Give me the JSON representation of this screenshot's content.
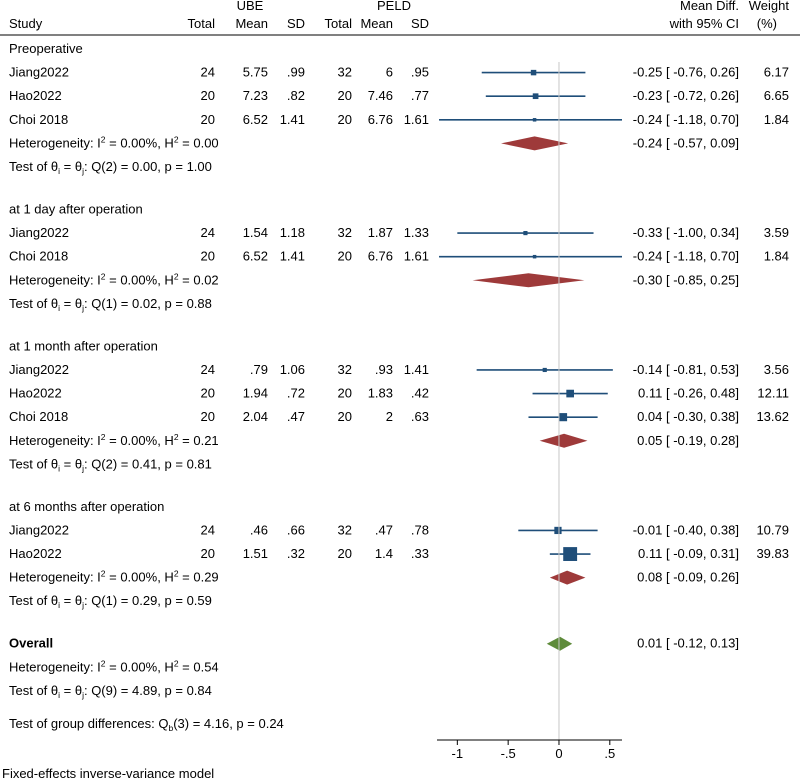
{
  "chart_data": {
    "type": "forest",
    "model_note": "Fixed-effects inverse-variance model",
    "header": {
      "study": "Study",
      "group1": "UBE",
      "group2": "PELD",
      "total": "Total",
      "mean": "Mean",
      "sd": "SD",
      "effect_line1": "Mean Diff.",
      "effect_line2": "with 95% CI",
      "weight_line1": "Weight",
      "weight_line2": "(%)"
    },
    "axis": {
      "xlim": [
        -1.2,
        0.62
      ],
      "ticks": [
        -1,
        -0.5,
        0,
        0.5
      ],
      "tick_labels": [
        "-1",
        "-.5",
        "0",
        ".5"
      ],
      "null_line": 0
    },
    "colors": {
      "study_marker": "#1f4e79",
      "subgroup_diamond": "#9e3a3a",
      "overall_diamond": "#5e8b3a",
      "line": "#000000"
    },
    "groups": [
      {
        "name": "Preoperative",
        "studies": [
          {
            "study": "Jiang2022",
            "n1": "24",
            "m1": "5.75",
            "sd1": ".99",
            "n2": "32",
            "m2": "6",
            "sd2": ".95",
            "est": -0.25,
            "lo": -0.76,
            "hi": 0.26,
            "ci_text": "-0.25 [  -0.76,  0.26]",
            "weight": "6.17"
          },
          {
            "study": "Hao2022",
            "n1": "20",
            "m1": "7.23",
            "sd1": ".82",
            "n2": "20",
            "m2": "7.46",
            "sd2": ".77",
            "est": -0.23,
            "lo": -0.72,
            "hi": 0.26,
            "ci_text": "-0.23 [  -0.72,  0.26]",
            "weight": "6.65"
          },
          {
            "study": "Choi 2018",
            "n1": "20",
            "m1": "6.52",
            "sd1": "1.41",
            "n2": "20",
            "m2": "6.76",
            "sd2": "1.61",
            "est": -0.24,
            "lo": -1.18,
            "hi": 0.7,
            "ci_text": "-0.24 [  -1.18,  0.70]",
            "weight": "1.84"
          }
        ],
        "pooled": {
          "est": -0.24,
          "lo": -0.57,
          "hi": 0.09,
          "ci_text": "-0.24 [  -0.57,  0.09]"
        },
        "heterogeneity": {
          "prefix": "Heterogeneity: I",
          "sup": "2",
          "mid": " = 0.00%, H",
          "sup2": "2",
          "suffix": " = 0.00"
        },
        "test": {
          "prefix": "Test of θ",
          "sub1": "i",
          "mid": " = θ",
          "sub2": "j",
          "suffix": ": Q(2) = 0.00, p = 1.00"
        }
      },
      {
        "name": "at 1 day after operation",
        "studies": [
          {
            "study": "Jiang2022",
            "n1": "24",
            "m1": "1.54",
            "sd1": "1.18",
            "n2": "32",
            "m2": "1.87",
            "sd2": "1.33",
            "est": -0.33,
            "lo": -1.0,
            "hi": 0.34,
            "ci_text": "-0.33 [  -1.00,  0.34]",
            "weight": "3.59"
          },
          {
            "study": "Choi 2018",
            "n1": "20",
            "m1": "6.52",
            "sd1": "1.41",
            "n2": "20",
            "m2": "6.76",
            "sd2": "1.61",
            "est": -0.24,
            "lo": -1.18,
            "hi": 0.7,
            "ci_text": "-0.24 [  -1.18,  0.70]",
            "weight": "1.84"
          }
        ],
        "pooled": {
          "est": -0.3,
          "lo": -0.85,
          "hi": 0.25,
          "ci_text": "-0.30 [  -0.85,  0.25]"
        },
        "heterogeneity": {
          "prefix": "Heterogeneity: I",
          "sup": "2",
          "mid": " = 0.00%, H",
          "sup2": "2",
          "suffix": " = 0.02"
        },
        "test": {
          "prefix": "Test of θ",
          "sub1": "i",
          "mid": " = θ",
          "sub2": "j",
          "suffix": ": Q(1) = 0.02, p = 0.88"
        }
      },
      {
        "name": "at 1 month after operation",
        "studies": [
          {
            "study": "Jiang2022",
            "n1": "24",
            "m1": ".79",
            "sd1": "1.06",
            "n2": "32",
            "m2": ".93",
            "sd2": "1.41",
            "est": -0.14,
            "lo": -0.81,
            "hi": 0.53,
            "ci_text": "-0.14 [  -0.81,  0.53]",
            "weight": "3.56"
          },
          {
            "study": "Hao2022",
            "n1": "20",
            "m1": "1.94",
            "sd1": ".72",
            "n2": "20",
            "m2": "1.83",
            "sd2": ".42",
            "est": 0.11,
            "lo": -0.26,
            "hi": 0.48,
            "ci_text": "0.11 [  -0.26,  0.48]",
            "weight": "12.11"
          },
          {
            "study": "Choi 2018",
            "n1": "20",
            "m1": "2.04",
            "sd1": ".47",
            "n2": "20",
            "m2": "2",
            "sd2": ".63",
            "est": 0.04,
            "lo": -0.3,
            "hi": 0.38,
            "ci_text": "0.04 [  -0.30,  0.38]",
            "weight": "13.62"
          }
        ],
        "pooled": {
          "est": 0.05,
          "lo": -0.19,
          "hi": 0.28,
          "ci_text": "0.05 [  -0.19,  0.28]"
        },
        "heterogeneity": {
          "prefix": "Heterogeneity: I",
          "sup": "2",
          "mid": " = 0.00%, H",
          "sup2": "2",
          "suffix": " = 0.21"
        },
        "test": {
          "prefix": "Test of θ",
          "sub1": "i",
          "mid": " = θ",
          "sub2": "j",
          "suffix": ": Q(2) = 0.41, p = 0.81"
        }
      },
      {
        "name": "at 6 months after operation",
        "studies": [
          {
            "study": "Jiang2022",
            "n1": "24",
            "m1": ".46",
            "sd1": ".66",
            "n2": "32",
            "m2": ".47",
            "sd2": ".78",
            "est": -0.01,
            "lo": -0.4,
            "hi": 0.38,
            "ci_text": "-0.01 [  -0.40,  0.38]",
            "weight": "10.79"
          },
          {
            "study": "Hao2022",
            "n1": "20",
            "m1": "1.51",
            "sd1": ".32",
            "n2": "20",
            "m2": "1.4",
            "sd2": ".33",
            "est": 0.11,
            "lo": -0.09,
            "hi": 0.31,
            "ci_text": "0.11 [  -0.09,  0.31]",
            "weight": "39.83"
          }
        ],
        "pooled": {
          "est": 0.08,
          "lo": -0.09,
          "hi": 0.26,
          "ci_text": "0.08 [  -0.09,  0.26]"
        },
        "heterogeneity": {
          "prefix": "Heterogeneity: I",
          "sup": "2",
          "mid": " = 0.00%, H",
          "sup2": "2",
          "suffix": " = 0.29"
        },
        "test": {
          "prefix": "Test of θ",
          "sub1": "i",
          "mid": " = θ",
          "sub2": "j",
          "suffix": ": Q(1) = 0.29, p = 0.59"
        }
      }
    ],
    "overall": {
      "label": "Overall",
      "est": 0.01,
      "lo": -0.12,
      "hi": 0.13,
      "ci_text": "0.01 [  -0.12,  0.13]",
      "heterogeneity": {
        "prefix": "Heterogeneity: I",
        "sup": "2",
        "mid": " = 0.00%, H",
        "sup2": "2",
        "suffix": " = 0.54"
      },
      "test": {
        "prefix": "Test of θ",
        "sub1": "i",
        "mid": " = θ",
        "sub2": "j",
        "suffix": ": Q(9) = 4.89, p = 0.84"
      }
    },
    "group_differences": {
      "prefix": "Test of group differences: Q",
      "sub": "b",
      "suffix": "(3) = 4.16, p = 0.24"
    }
  }
}
